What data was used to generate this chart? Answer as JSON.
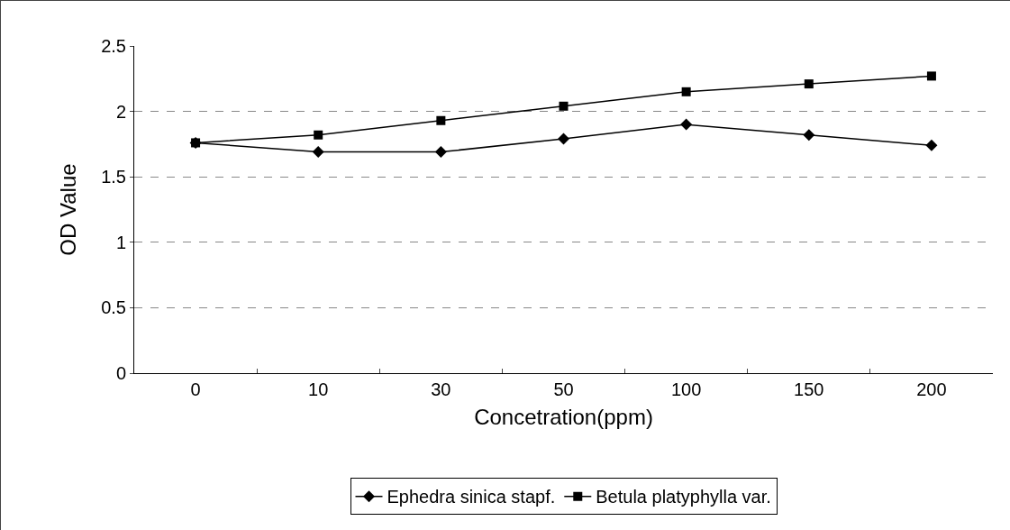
{
  "chart_data": {
    "type": "line",
    "xlabel": "Concetration(ppm)",
    "ylabel": "OD Value",
    "categories": [
      "0",
      "10",
      "30",
      "50",
      "100",
      "150",
      "200"
    ],
    "series": [
      {
        "name": "Ephedra sinica stapf.",
        "color": "#000000",
        "marker": "diamond",
        "values": [
          1.76,
          1.69,
          1.69,
          1.79,
          1.9,
          1.82,
          1.74
        ]
      },
      {
        "name": "Betula platyphylla var.",
        "color": "#000000",
        "marker": "square",
        "values": [
          1.76,
          1.82,
          1.93,
          2.04,
          2.15,
          2.21,
          2.27
        ]
      }
    ],
    "ylim": [
      0,
      2.5
    ],
    "yticks": [
      0,
      0.5,
      1,
      1.5,
      2,
      2.5
    ],
    "grid": "y",
    "legend": "bottom",
    "line_style": "solid"
  }
}
